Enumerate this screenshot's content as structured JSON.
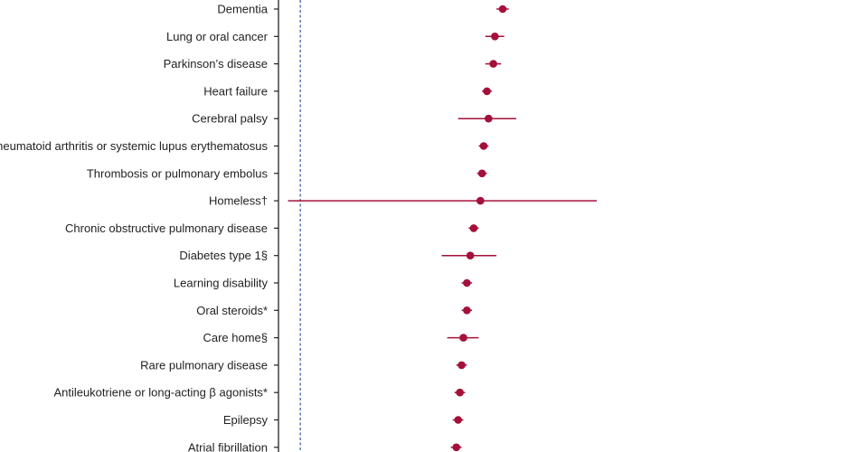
{
  "chart_data": {
    "type": "forest",
    "title": "",
    "xlabel": "",
    "ylabel": "",
    "reference_value": 1,
    "categories": [
      "Dementia",
      "Lung or oral cancer",
      "Parkinson’s disease",
      "Heart failure",
      "Cerebral palsy",
      "Rheumatoid arthritis or systemic lupus erythematosus",
      "Thrombosis or pulmonary embolus",
      "Homeless†",
      "Chronic obstructive pulmonary disease",
      "Diabetes type 1§",
      "Learning disability",
      "Oral steroids*",
      "Care home§",
      "Rare pulmonary disease",
      "Antileukotriene or long-acting β agonists*",
      "Epilepsy",
      "Atrial fibrillation"
    ],
    "series": [
      {
        "estimates": [
          1.96,
          1.91,
          1.9,
          1.86,
          1.87,
          1.84,
          1.83,
          1.82,
          1.78,
          1.76,
          1.74,
          1.74,
          1.72,
          1.71,
          1.7,
          1.69,
          1.68
        ],
        "ci_lower": [
          1.92,
          1.85,
          1.85,
          1.83,
          1.69,
          1.81,
          1.8,
          0.96,
          1.75,
          1.6,
          1.71,
          1.71,
          1.63,
          1.68,
          1.67,
          1.66,
          1.65
        ],
        "ci_upper": [
          2.0,
          1.97,
          1.95,
          1.89,
          2.05,
          1.87,
          1.86,
          2.68,
          1.81,
          1.92,
          1.77,
          1.77,
          1.81,
          1.74,
          1.73,
          1.72,
          1.71
        ]
      }
    ],
    "xlim": [
      0.93,
      6.2
    ],
    "grid": false,
    "colors": {
      "point": "#a4103a",
      "ci_line": "#a4103a",
      "reference_line": "#3f63a8",
      "axis": "#222222"
    }
  }
}
